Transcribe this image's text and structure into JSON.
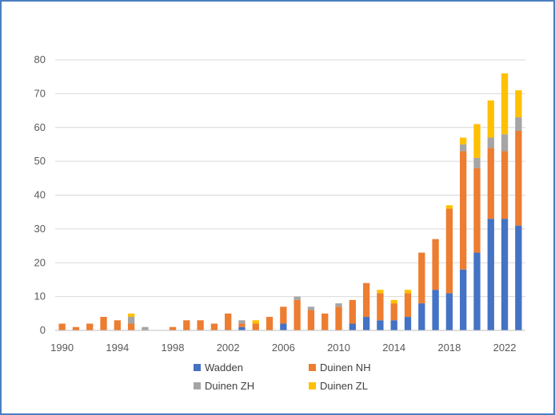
{
  "chart_data": {
    "type": "bar",
    "stacked": true,
    "title": "",
    "xlabel": "",
    "ylabel": "",
    "ylim": [
      0,
      80
    ],
    "yticks": [
      0,
      10,
      20,
      30,
      40,
      50,
      60,
      70,
      80
    ],
    "grid": true,
    "legend_position": "bottom",
    "categories": [
      "1990",
      "1991",
      "1992",
      "1993",
      "1994",
      "1995",
      "1996",
      "1997",
      "1998",
      "1999",
      "2000",
      "2001",
      "2002",
      "2003",
      "2004",
      "2005",
      "2006",
      "2007",
      "2008",
      "2009",
      "2010",
      "2011",
      "2012",
      "2013",
      "2014",
      "2015",
      "2016",
      "2017",
      "2018",
      "2019",
      "2020",
      "2021",
      "2022",
      "2023"
    ],
    "xtick_labels": [
      "1990",
      "1994",
      "1998",
      "2002",
      "2006",
      "2010",
      "2014",
      "2018",
      "2022"
    ],
    "series": [
      {
        "name": "Wadden",
        "color": "#4472c4",
        "values": [
          0,
          0,
          0,
          0,
          0,
          0,
          0,
          0,
          0,
          0,
          0,
          0,
          0,
          1,
          0,
          0,
          2,
          0,
          0,
          0,
          0,
          2,
          4,
          3,
          3,
          4,
          8,
          12,
          11,
          18,
          23,
          33,
          33,
          31
        ]
      },
      {
        "name": "Duinen NH",
        "color": "#ed7d31",
        "values": [
          2,
          1,
          2,
          4,
          3,
          2,
          0,
          0,
          1,
          3,
          3,
          2,
          5,
          1,
          2,
          4,
          5,
          9,
          6,
          5,
          7,
          7,
          10,
          8,
          5,
          7,
          15,
          15,
          25,
          35,
          25,
          21,
          20,
          28
        ]
      },
      {
        "name": "Duinen ZH",
        "color": "#a5a5a5",
        "values": [
          0,
          0,
          0,
          0,
          0,
          2,
          1,
          0,
          0,
          0,
          0,
          0,
          0,
          1,
          0,
          0,
          0,
          1,
          1,
          0,
          1,
          0,
          0,
          0,
          0,
          0,
          0,
          0,
          0,
          2,
          3,
          3,
          5,
          4
        ]
      },
      {
        "name": "Duinen ZL",
        "color": "#ffc000",
        "values": [
          0,
          0,
          0,
          0,
          0,
          1,
          0,
          0,
          0,
          0,
          0,
          0,
          0,
          0,
          1,
          0,
          0,
          0,
          0,
          0,
          0,
          0,
          0,
          1,
          1,
          1,
          0,
          0,
          1,
          2,
          10,
          11,
          18,
          8
        ]
      }
    ]
  }
}
